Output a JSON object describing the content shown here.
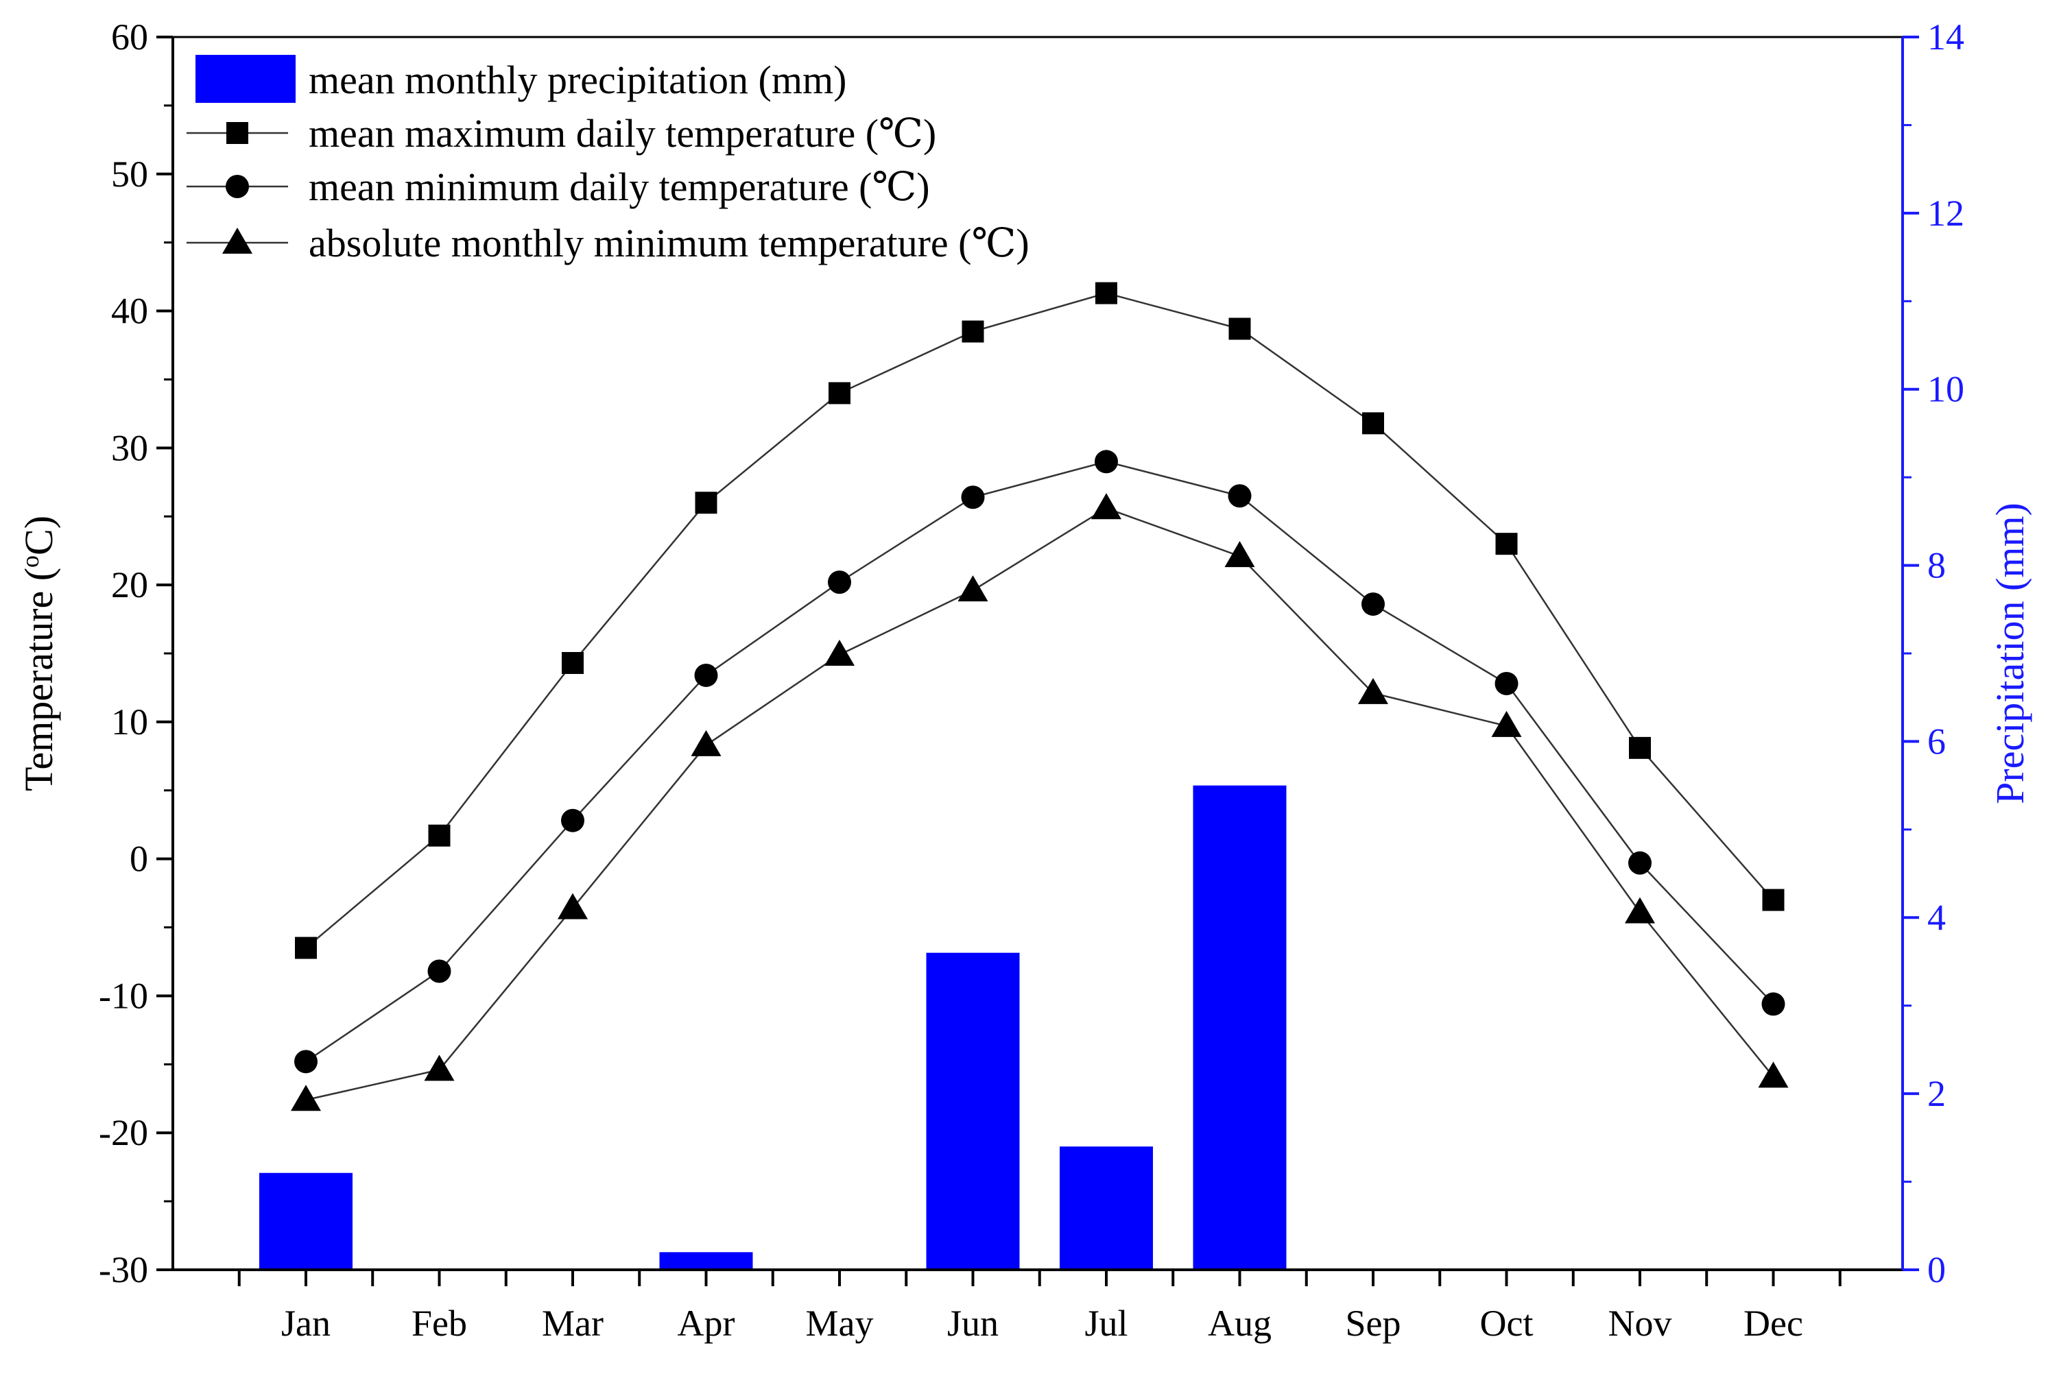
{
  "chart_data": {
    "type": "bar+line",
    "categories": [
      "Jan",
      "Feb",
      "Mar",
      "Apr",
      "May",
      "Jun",
      "Jul",
      "Aug",
      "Sep",
      "Oct",
      "Nov",
      "Dec"
    ],
    "left_axis": {
      "label_prefix": "Temperature (",
      "label_degree": "o",
      "label_suffix": "C)",
      "ylim": [
        -30,
        60
      ],
      "ticks": [
        "-30",
        "-20",
        "-10",
        "0",
        "10",
        "20",
        "30",
        "40",
        "50",
        "60"
      ]
    },
    "right_axis": {
      "label": "Precipitation (mm)",
      "ylim": [
        0,
        14
      ],
      "ticks": [
        "0",
        "2",
        "4",
        "6",
        "8",
        "10",
        "12",
        "14"
      ],
      "color": "#1a1aff"
    },
    "series": [
      {
        "name": "mean monthly precipitation (mm)",
        "kind": "bar",
        "axis": "right",
        "color": "#0000ff",
        "values": [
          1.1,
          0,
          0,
          0.2,
          0,
          3.6,
          1.4,
          5.5,
          0,
          0,
          0,
          0
        ]
      },
      {
        "name": "mean maximum daily temperature (℃)",
        "kind": "line",
        "marker": "square",
        "axis": "left",
        "values": [
          -6.5,
          1.7,
          14.3,
          26.0,
          34.0,
          38.5,
          41.3,
          38.7,
          31.8,
          23.0,
          8.1,
          -3.0
        ]
      },
      {
        "name": "mean minimum daily temperature (℃)",
        "kind": "line",
        "marker": "circle",
        "axis": "left",
        "values": [
          -14.8,
          -8.2,
          2.8,
          13.4,
          20.2,
          26.4,
          29.0,
          26.5,
          18.6,
          12.8,
          -0.3,
          -10.6
        ]
      },
      {
        "name": "absolute monthly minimum temperature (℃)",
        "kind": "line",
        "marker": "triangle",
        "axis": "left",
        "values": [
          -17.6,
          -15.4,
          -3.6,
          8.3,
          14.9,
          19.6,
          25.6,
          22.1,
          12.1,
          9.7,
          -3.9,
          -15.9
        ]
      }
    ],
    "legend_position": "top-left"
  }
}
